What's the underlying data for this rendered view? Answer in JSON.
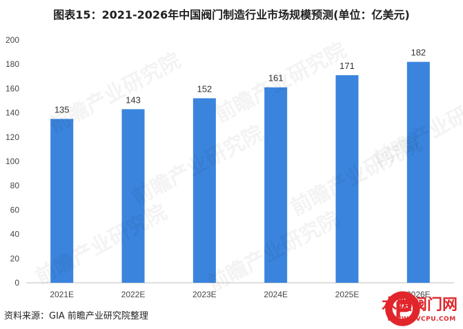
{
  "title": "图表15：2021-2026年中国阀门制造行业市场规模预测(单位：亿美元)",
  "source": "资料来源：GIA 前瞻产业研究院整理",
  "watermark_text": "前瞻产业研究院",
  "stamp": {
    "name": "水暖阀门网",
    "url": "WWW.PVCPU.COM"
  },
  "colors": {
    "bar": "#3a84dd",
    "grid": "#d9d9d9",
    "axis": "#bfbfbf",
    "stamp": "#e0262b"
  },
  "chart_data": {
    "type": "bar",
    "categories": [
      "2021E",
      "2022E",
      "2023E",
      "2024E",
      "2025E",
      "2026E"
    ],
    "values": [
      135,
      143,
      152,
      161,
      171,
      182
    ],
    "ylim": [
      0,
      200
    ],
    "yticks": [
      0,
      20,
      40,
      60,
      80,
      100,
      120,
      140,
      160,
      180,
      200
    ],
    "data_labels": true,
    "grid": false,
    "legend": "none"
  }
}
